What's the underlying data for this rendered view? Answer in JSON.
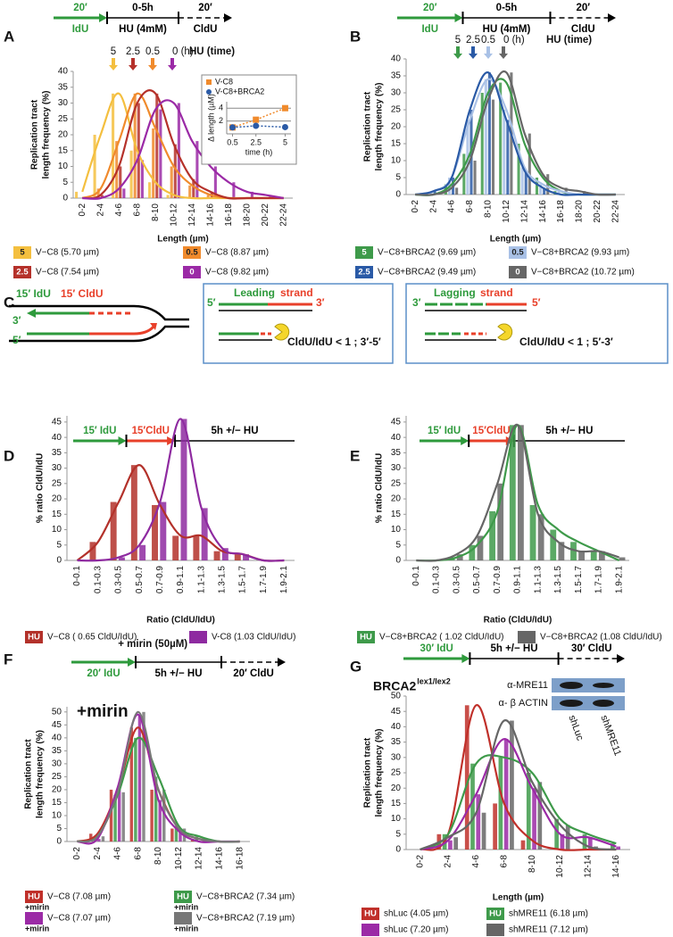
{
  "chart_data": [
    {
      "type": "bar",
      "panel": "A",
      "ylabel": [
        "Replication tract",
        "length frequency (%)"
      ],
      "xlabel": "Length (µm)",
      "categories": [
        "0-2",
        "2-4",
        "4-6",
        "6-8",
        "8-10",
        "10-12",
        "12-14",
        "14-16",
        "16-18",
        "18-20",
        "20-22",
        "22-24"
      ],
      "series": [
        {
          "name": "V−C8 (5.70 µm)",
          "badge": "5",
          "color": "#f4bf3f",
          "values": [
            2,
            20,
            33,
            15,
            5,
            1,
            0,
            0,
            0,
            0,
            0,
            0
          ]
        },
        {
          "name": "V−C8 (8.87 µm)",
          "badge": "0.5",
          "color": "#f08a2c",
          "values": [
            0,
            3,
            18,
            33,
            22,
            10,
            4,
            1,
            0,
            0,
            0,
            0
          ]
        },
        {
          "name": "V−C8 (7.54 µm)",
          "badge": "2.5",
          "color": "#b5312a",
          "values": [
            0,
            1,
            10,
            30,
            33,
            17,
            6,
            2,
            0,
            0,
            0,
            0
          ]
        },
        {
          "name": "V−C8 (9.82 µm)",
          "badge": "0",
          "color": "#9b2aa6",
          "values": [
            0,
            0,
            3,
            12,
            28,
            30,
            18,
            10,
            5,
            2,
            1,
            0
          ]
        }
      ],
      "ylim": [
        0,
        40
      ],
      "yticks": [
        0,
        5,
        10,
        15,
        20,
        25,
        30,
        35,
        40
      ],
      "time_labels": [
        "5",
        "2.5",
        "0.5",
        "0 (h)"
      ],
      "time_title": "HU (time)",
      "timeline": {
        "segments": [
          {
            "kind": "arrow",
            "color": "#2e9a3c",
            "above": "20′",
            "below": "IdU"
          },
          {
            "kind": "solid",
            "color": "#000000",
            "above": "0-5h",
            "below": "HU (4mM)"
          },
          {
            "kind": "dashed",
            "color": "#000000",
            "above": "20′",
            "below": "CldU"
          }
        ]
      }
    },
    {
      "type": "line",
      "ylabel": "Δ length (µM)",
      "xlabel": "time (h)",
      "x": [
        0.5,
        2.5,
        5
      ],
      "xlim": [
        0,
        5.5
      ],
      "xticks": [
        0.5,
        2.5,
        5
      ],
      "ylim": [
        0,
        5
      ],
      "yticks": [
        2,
        4
      ],
      "series": [
        {
          "name": "V-C8",
          "color": "#f08a2c",
          "marker": "square",
          "values": [
            1,
            2.2,
            4
          ]
        },
        {
          "name": "V-C8+BRCA2",
          "color": "#2a5aa6",
          "marker": "circle",
          "values": [
            1,
            1.25,
            1.05
          ]
        }
      ]
    },
    {
      "type": "bar",
      "panel": "B",
      "ylabel": [
        "Replication tract",
        "length frequency (%)"
      ],
      "xlabel": "Length (µm)",
      "categories": [
        "0-2",
        "2-4",
        "4-6",
        "6-8",
        "8-10",
        "10-12",
        "12-14",
        "14-16",
        "16-18",
        "18-20",
        "20-22",
        "22-24"
      ],
      "series": [
        {
          "name": "V−C8+BRCA2 (9.69 µm)",
          "badge": "5",
          "color": "#3e9a4a",
          "values": [
            0,
            0,
            3,
            12,
            30,
            33,
            15,
            5,
            1,
            0,
            0,
            0
          ]
        },
        {
          "name": "V−C8+BRCA2 (9.93 µm)",
          "badge": "0.5",
          "color": "#a9c1e6",
          "values": [
            0,
            1,
            5,
            22,
            34,
            25,
            8,
            3,
            1,
            0,
            0,
            0
          ]
        },
        {
          "name": "V−C8+BRCA2 (9.49 µm)",
          "badge": "2.5",
          "color": "#2a5aa6",
          "values": [
            0,
            1,
            5,
            25,
            36,
            22,
            7,
            2,
            0,
            0,
            0,
            0
          ]
        },
        {
          "name": "V−C8+BRCA2 (10.72 µm)",
          "badge": "0",
          "color": "#666666",
          "values": [
            0,
            0,
            2,
            10,
            28,
            36,
            18,
            6,
            2,
            1,
            0,
            0
          ]
        }
      ],
      "ylim": [
        0,
        40
      ],
      "yticks": [
        0,
        5,
        10,
        15,
        20,
        25,
        30,
        35,
        40
      ],
      "time_labels": [
        "5",
        "2.5",
        "0.5",
        "0 (h)"
      ],
      "time_title": "HU (time)",
      "timeline": {
        "segments": [
          {
            "kind": "arrow",
            "color": "#2e9a3c",
            "above": "20′",
            "below": "IdU"
          },
          {
            "kind": "solid",
            "color": "#000000",
            "above": "0-5h",
            "below": "HU (4mM)"
          },
          {
            "kind": "dashed",
            "color": "#000000",
            "above": "20′",
            "below": "CldU"
          }
        ]
      }
    },
    {
      "type": "bar",
      "panel": "D",
      "ylabel": [
        "% ratio CldU/IdU"
      ],
      "xlabel": "Ratio (CldU/IdU)",
      "categories": [
        "0-0.1",
        "0.1-0.3",
        "0.3-0.5",
        "0.5-0.7",
        "0.7-0.9",
        "0.9-1.1",
        "1.1-1.3",
        "1.3-1.5",
        "1.5-1.7",
        "1.7-1.9",
        "1.9-2.1"
      ],
      "series": [
        {
          "name": "V−C8 ( 0.65 CldU/IdU)",
          "badge": "HU",
          "color": "#b3312a",
          "values": [
            0,
            6,
            19,
            31,
            18,
            8,
            8,
            3,
            2,
            0,
            0
          ]
        },
        {
          "name": "V-C8 (1.03 CldU/IdU)",
          "color": "#8e2aa0",
          "values": [
            0,
            0,
            1,
            5,
            19,
            46,
            17,
            4,
            2,
            0,
            0
          ]
        }
      ],
      "ylim": [
        0,
        47
      ],
      "yticks": [
        0,
        5,
        10,
        15,
        20,
        25,
        30,
        35,
        40,
        45
      ],
      "timeline": {
        "segments": [
          {
            "kind": "arrow",
            "color": "#2e9a3c",
            "above": "15′ IdU"
          },
          {
            "kind": "arrow",
            "color": "#e8402a",
            "above": "15′CldU"
          },
          {
            "kind": "solid",
            "color": "#000000",
            "above": "5h +/−  HU"
          }
        ]
      }
    },
    {
      "type": "bar",
      "panel": "E",
      "ylabel": [
        "% ratio CldU/IdU"
      ],
      "xlabel": "Ratio (CldU/IdU)",
      "categories": [
        "0-0.1",
        "0.1-0.3",
        "0.3-0.5",
        "0.5-0.7",
        "0.7-0.9",
        "0.9-1.1",
        "1.1-1.3",
        "1.3-1.5",
        "1.5-1.7",
        "1.7-1.9",
        "1.9-2.1"
      ],
      "series": [
        {
          "name": "V−C8+BRCA2 ( 1.02 CldU/IdU)",
          "badge": "HU",
          "color": "#3e9a4a",
          "values": [
            0,
            0,
            1,
            5,
            16,
            44,
            18,
            10,
            6,
            3,
            0
          ]
        },
        {
          "name": "V−C8+BRCA2 (1.08 CldU/IdU)",
          "color": "#666666",
          "values": [
            0,
            0,
            2,
            8,
            25,
            44,
            15,
            6,
            3,
            3,
            1
          ]
        }
      ],
      "ylim": [
        0,
        47
      ],
      "yticks": [
        0,
        5,
        10,
        15,
        20,
        25,
        30,
        35,
        40,
        45
      ],
      "timeline": {
        "segments": [
          {
            "kind": "arrow",
            "color": "#2e9a3c",
            "above": "15′ IdU"
          },
          {
            "kind": "arrow",
            "color": "#e8402a",
            "above": "15′CldU"
          },
          {
            "kind": "solid",
            "color": "#000000",
            "above": "5h +/−  HU"
          }
        ]
      }
    },
    {
      "type": "bar",
      "panel": "F",
      "ylabel": [
        "Replication tract",
        "length frequency (%)"
      ],
      "annotation": "+mirin",
      "categories": [
        "0-2",
        "2-4",
        "4-6",
        "6-8",
        "8-10",
        "10-12",
        "12-14",
        "14-16",
        "16-18"
      ],
      "series": [
        {
          "name": "V−C8  (7.08 µm)",
          "badge": "HU",
          "note": "+mirin",
          "color": "#c0302a",
          "values": [
            0,
            3,
            20,
            44,
            20,
            5,
            1,
            0,
            0
          ]
        },
        {
          "name": "V−C8+BRCA2  (7.34 µm)",
          "badge": "HU",
          "note": "+mirin",
          "color": "#3e9a4a",
          "values": [
            0,
            2,
            18,
            40,
            25,
            6,
            2,
            0,
            0
          ]
        },
        {
          "name": "V−C8  (7.07 µm)",
          "note": "+mirin",
          "color": "#9b2aa6",
          "values": [
            0,
            1,
            21,
            49,
            16,
            4,
            0,
            0,
            0
          ]
        },
        {
          "name": "V−C8+BRCA2  (7.19 µm)",
          "note": "+mirin",
          "color": "#777777",
          "values": [
            0,
            2,
            19,
            50,
            20,
            5,
            1,
            0,
            0
          ]
        }
      ],
      "ylim": [
        0,
        52
      ],
      "yticks": [
        0,
        5,
        10,
        15,
        20,
        25,
        30,
        35,
        40,
        45,
        50
      ],
      "timeline": {
        "header": "+ mirin (50µM)",
        "segments": [
          {
            "kind": "arrow",
            "color": "#2e9a3c",
            "below": "20′ IdU"
          },
          {
            "kind": "solid",
            "color": "#000000",
            "below": "5h +/− HU"
          },
          {
            "kind": "dashed",
            "color": "#000000",
            "below": "20′ CldU"
          }
        ]
      }
    },
    {
      "type": "bar",
      "panel": "G",
      "title": "BRCA2",
      "title_sup": "lex1/lex2",
      "ylabel": [
        "Replication tract",
        "length frequency (%)"
      ],
      "xlabel": "Length (µm)",
      "categories": [
        "0-2",
        "2-4",
        "4-6",
        "6-8",
        "8-10",
        "10-12",
        "12-14",
        "14-16"
      ],
      "series": [
        {
          "name": "shLuc (4.05 µm)",
          "badge": "HU",
          "color": "#c0302a",
          "values": [
            0,
            5,
            47,
            15,
            3,
            0,
            0,
            0
          ]
        },
        {
          "name": "shMRE11 (6.18 µm)",
          "badge": "HU",
          "color": "#3e9a4a",
          "values": [
            0,
            5,
            28,
            30,
            25,
            10,
            5,
            2
          ]
        },
        {
          "name": "shLuc (7.20 µm)",
          "color": "#9b2aa6",
          "values": [
            0,
            3,
            18,
            36,
            20,
            5,
            4,
            1
          ]
        },
        {
          "name": "shMRE11 (7.12 µm)",
          "color": "#666666",
          "values": [
            0,
            4,
            12,
            42,
            22,
            8,
            1,
            0
          ]
        }
      ],
      "ylim": [
        0,
        50
      ],
      "yticks": [
        0,
        5,
        10,
        15,
        20,
        25,
        30,
        35,
        40,
        45,
        50
      ],
      "inset_blot": {
        "rows": [
          "α-MRE11",
          "α- β ACTIN"
        ],
        "lanes": [
          "shLuc",
          "shMRE11"
        ]
      },
      "timeline": {
        "segments": [
          {
            "kind": "arrow",
            "color": "#2e9a3c",
            "above": "30′ IdU"
          },
          {
            "kind": "solid",
            "color": "#000000",
            "above": "5h +/− HU"
          },
          {
            "kind": "dashed",
            "color": "#000000",
            "above": "30′ CldU"
          }
        ]
      }
    }
  ],
  "diagram_c": {
    "panel": "C",
    "idu": "15′ IdU",
    "cldu": "15′ CldU",
    "top_end": "3′",
    "bottom_end": "5′",
    "boxes": [
      {
        "end_left": "5′",
        "title_a": "Leading",
        "title_b": "strand",
        "end_right": "3′",
        "result": "CldU/IdU < 1 ; 3′-5′"
      },
      {
        "end_left": "3′",
        "title_a": "Lagging",
        "title_b": "strand",
        "end_right": "5′",
        "result": "CldU/IdU < 1 ; 5′-3′"
      }
    ]
  }
}
